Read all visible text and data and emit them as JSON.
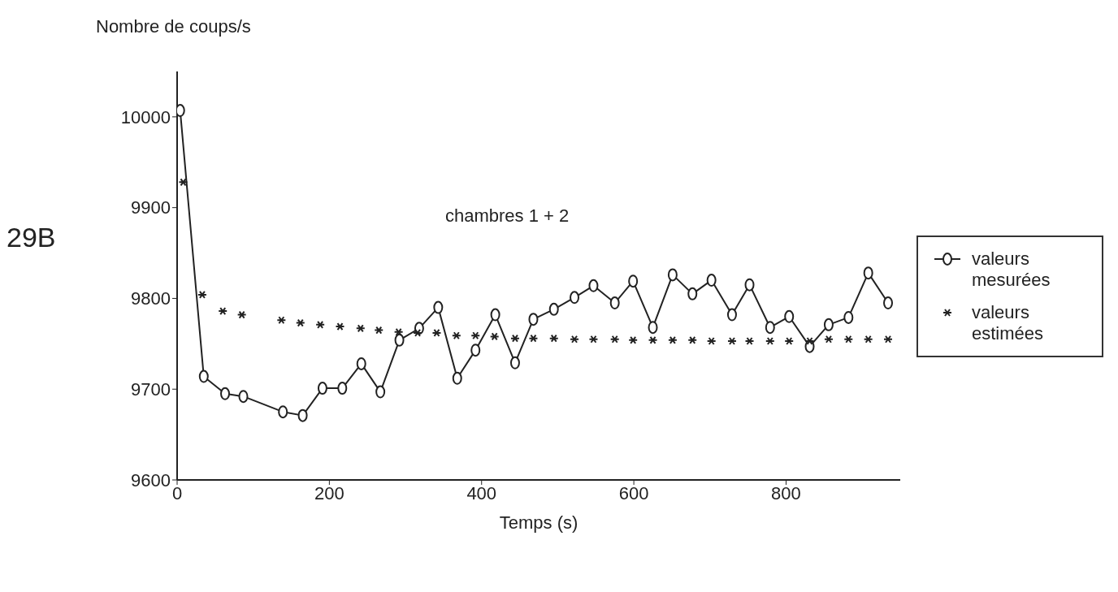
{
  "chart_data": {
    "type": "line",
    "ylabel": "Nombre de coups/s",
    "xlabel": "Temps (s)",
    "annotations": [
      "29B",
      "chambres 1 + 2"
    ],
    "xlim": [
      0,
      950
    ],
    "xticks": [
      0,
      200,
      400,
      600,
      800
    ],
    "ylim": [
      9600,
      10050
    ],
    "yticks": [
      9600,
      9700,
      9800,
      9900,
      10000
    ],
    "grid": false,
    "legend": "right",
    "series": [
      {
        "name": "valeurs mesurées",
        "marker": "circle",
        "line_style": "solid",
        "color": "#222222",
        "x": [
          4,
          35,
          63,
          87,
          139,
          165,
          191,
          217,
          242,
          267,
          292,
          318,
          343,
          368,
          392,
          418,
          444,
          468,
          495,
          522,
          547,
          575,
          599,
          625,
          651,
          677,
          702,
          729,
          752,
          779,
          804,
          831,
          856,
          882,
          908,
          934
        ],
        "values": [
          10007,
          9714,
          9695,
          9692,
          9675,
          9671,
          9701,
          9701,
          9728,
          9697,
          9754,
          9767,
          9790,
          9712,
          9743,
          9782,
          9729,
          9777,
          9788,
          9801,
          9814,
          9795,
          9819,
          9768,
          9826,
          9805,
          9820,
          9782,
          9815,
          9768,
          9780,
          9747,
          9771,
          9779,
          9828,
          9795
        ]
      },
      {
        "name": "valeurs estimées",
        "type": "scatter",
        "marker": "cross",
        "color": "#222222",
        "x": [
          8,
          33,
          60,
          85,
          137,
          162,
          188,
          214,
          241,
          265,
          291,
          316,
          341,
          367,
          392,
          417,
          444,
          468,
          495,
          522,
          547,
          575,
          599,
          625,
          651,
          677,
          702,
          729,
          752,
          779,
          804,
          831,
          856,
          882,
          908,
          934
        ],
        "values": [
          9928,
          9804,
          9786,
          9782,
          9776,
          9773,
          9771,
          9769,
          9767,
          9765,
          9763,
          9762,
          9762,
          9759,
          9759,
          9758,
          9756,
          9756,
          9756,
          9755,
          9755,
          9755,
          9754,
          9754,
          9754,
          9754,
          9753,
          9753,
          9753,
          9753,
          9753,
          9753,
          9755,
          9755,
          9755,
          9755
        ]
      }
    ]
  }
}
